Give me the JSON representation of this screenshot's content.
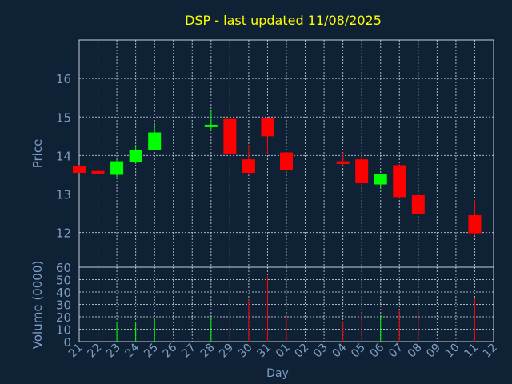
{
  "chart_data": {
    "type": "candlestick",
    "title": "DSP - last updated 11/08/2025",
    "xlabel": "Day",
    "price_panel": {
      "ylabel": "Price",
      "ylim": [
        11.1,
        17.0
      ],
      "yticks": [
        12,
        13,
        14,
        15,
        16
      ],
      "grid": true
    },
    "volume_panel": {
      "ylabel": "Volume (0000)",
      "ylim": [
        0,
        60
      ],
      "yticks": [
        0,
        10,
        20,
        30,
        40,
        50,
        60
      ],
      "grid": true
    },
    "x_ticks": [
      "21",
      "22",
      "23",
      "24",
      "25",
      "26",
      "27",
      "28",
      "29",
      "30",
      "31",
      "01",
      "02",
      "03",
      "04",
      "05",
      "06",
      "07",
      "08",
      "09",
      "10",
      "11",
      "12"
    ],
    "candles": [
      {
        "day": "21",
        "open": 13.72,
        "high": 13.75,
        "low": 13.55,
        "close": 13.55
      },
      {
        "day": "22",
        "open": 13.6,
        "high": 13.85,
        "low": 13.32,
        "close": 13.53
      },
      {
        "day": "23",
        "open": 13.5,
        "high": 13.88,
        "low": 13.43,
        "close": 13.85
      },
      {
        "day": "24",
        "open": 13.82,
        "high": 14.28,
        "low": 13.78,
        "close": 14.15
      },
      {
        "day": "25",
        "open": 14.15,
        "high": 14.8,
        "low": 14.15,
        "close": 14.6
      },
      {
        "day": "28",
        "open": 14.75,
        "high": 15.18,
        "low": 14.65,
        "close": 14.8
      },
      {
        "day": "29",
        "open": 14.95,
        "high": 14.95,
        "low": 14.05,
        "close": 14.05
      },
      {
        "day": "30",
        "open": 13.9,
        "high": 14.28,
        "low": 13.5,
        "close": 13.55
      },
      {
        "day": "31",
        "open": 14.98,
        "high": 14.98,
        "low": 14.05,
        "close": 14.5
      },
      {
        "day": "01",
        "open": 14.08,
        "high": 14.08,
        "low": 13.58,
        "close": 13.62
      },
      {
        "day": "04",
        "open": 13.85,
        "high": 14.08,
        "low": 13.75,
        "close": 13.78
      },
      {
        "day": "05",
        "open": 13.9,
        "high": 14.02,
        "low": 13.22,
        "close": 13.28
      },
      {
        "day": "06",
        "open": 13.25,
        "high": 13.52,
        "low": 13.15,
        "close": 13.52
      },
      {
        "day": "07",
        "open": 13.75,
        "high": 13.78,
        "low": 12.88,
        "close": 12.92
      },
      {
        "day": "08",
        "open": 12.97,
        "high": 12.97,
        "low": 12.45,
        "close": 12.48
      },
      {
        "day": "11",
        "open": 12.45,
        "high": 12.85,
        "low": 11.92,
        "close": 11.98
      }
    ],
    "volumes": [
      {
        "day": "21",
        "value": 0,
        "direction": "down"
      },
      {
        "day": "22",
        "value": 19,
        "direction": "down"
      },
      {
        "day": "23",
        "value": 16,
        "direction": "up"
      },
      {
        "day": "24",
        "value": 16,
        "direction": "up"
      },
      {
        "day": "25",
        "value": 19,
        "direction": "up"
      },
      {
        "day": "28",
        "value": 19,
        "direction": "up"
      },
      {
        "day": "29",
        "value": 21,
        "direction": "down"
      },
      {
        "day": "30",
        "value": 34,
        "direction": "down"
      },
      {
        "day": "31",
        "value": 53,
        "direction": "down"
      },
      {
        "day": "01",
        "value": 21,
        "direction": "down"
      },
      {
        "day": "04",
        "value": 16,
        "direction": "down"
      },
      {
        "day": "05",
        "value": 22,
        "direction": "down"
      },
      {
        "day": "06",
        "value": 21,
        "direction": "up"
      },
      {
        "day": "07",
        "value": 25,
        "direction": "down"
      },
      {
        "day": "08",
        "value": 25,
        "direction": "down"
      },
      {
        "day": "11",
        "value": 35,
        "direction": "down"
      }
    ]
  },
  "colors": {
    "background": "#0f2135",
    "title": "#ffff00",
    "axis_text": "#7f9fc4",
    "grid": "#c8d0dc",
    "up": "#00ff00",
    "down": "#ff0000"
  }
}
